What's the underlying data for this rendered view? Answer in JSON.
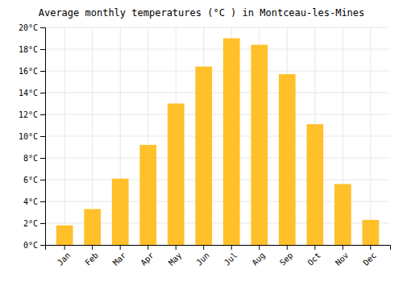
{
  "chart_data": {
    "type": "bar",
    "title": "Average monthly temperatures (°C ) in Montceau-les-Mines",
    "categories": [
      "Jan",
      "Feb",
      "Mar",
      "Apr",
      "May",
      "Jun",
      "Jul",
      "Aug",
      "Sep",
      "Oct",
      "Nov",
      "Dec"
    ],
    "values": [
      1.8,
      3.3,
      6.1,
      9.2,
      13.0,
      16.4,
      19.0,
      18.4,
      15.7,
      11.1,
      5.6,
      2.3
    ],
    "color": "#FFC02A",
    "ylim": [
      0,
      20
    ],
    "yticks": [
      {
        "value": 0,
        "label": "0°C"
      },
      {
        "value": 2,
        "label": "2°C"
      },
      {
        "value": 4,
        "label": "4°C"
      },
      {
        "value": 6,
        "label": "6°C"
      },
      {
        "value": 8,
        "label": "8°C"
      },
      {
        "value": 10,
        "label": "10°C"
      },
      {
        "value": 12,
        "label": "12°C"
      },
      {
        "value": 14,
        "label": "14°C"
      },
      {
        "value": 16,
        "label": "16°C"
      },
      {
        "value": 18,
        "label": "18°C"
      },
      {
        "value": 20,
        "label": "20°C"
      }
    ],
    "grid": true
  }
}
